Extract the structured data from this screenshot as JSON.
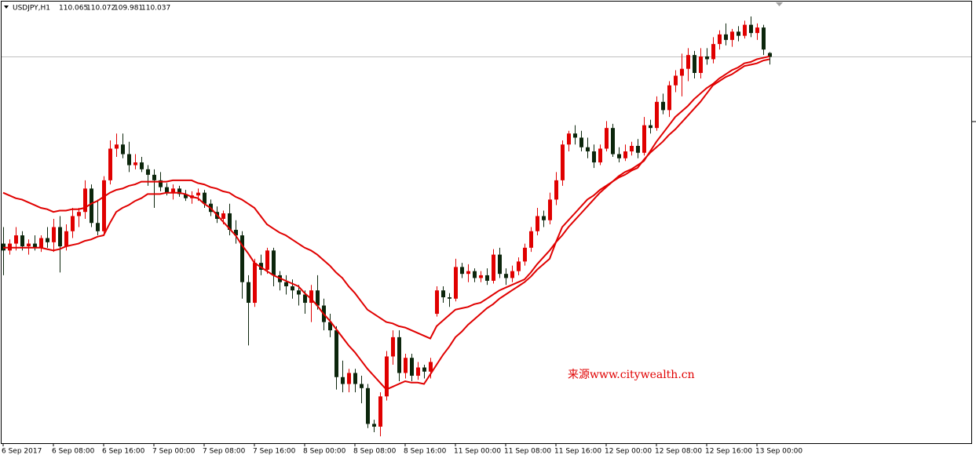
{
  "chart_data": {
    "type": "candlestick",
    "title": "USDJPY,H1",
    "annotation": "来源www.citywealth.cn",
    "ylim": [
      107.23,
      110.45
    ],
    "bull_color": "#e00000",
    "bear_color": "#0c260c",
    "xticks": [
      {
        "value": 0,
        "label": "6 Sep 2017"
      },
      {
        "value": 8,
        "label": "6 Sep 08:00"
      },
      {
        "value": 16,
        "label": "6 Sep 16:00"
      },
      {
        "value": 24,
        "label": "7 Sep 00:00"
      },
      {
        "value": 32,
        "label": "7 Sep 08:00"
      },
      {
        "value": 40,
        "label": "7 Sep 16:00"
      },
      {
        "value": 48,
        "label": "8 Sep 00:00"
      },
      {
        "value": 56,
        "label": "8 Sep 08:00"
      },
      {
        "value": 64,
        "label": "8 Sep 16:00"
      },
      {
        "value": 72,
        "label": "11 Sep 00:00"
      },
      {
        "value": 80,
        "label": "11 Sep 08:00"
      },
      {
        "value": 88,
        "label": "11 Sep 16:00"
      },
      {
        "value": 96,
        "label": "12 Sep 00:00"
      },
      {
        "value": 104,
        "label": "12 Sep 08:00"
      },
      {
        "value": 112,
        "label": "12 Sep 16:00"
      },
      {
        "value": 120,
        "label": "13 Sep 00:00"
      }
    ],
    "ohlc": [
      [
        108.68,
        108.8,
        108.45,
        108.63
      ],
      [
        108.63,
        108.71,
        108.6,
        108.68
      ],
      [
        108.68,
        108.8,
        108.63,
        108.74
      ],
      [
        108.74,
        108.77,
        108.63,
        108.66
      ],
      [
        108.66,
        108.71,
        108.6,
        108.68
      ],
      [
        108.68,
        108.74,
        108.63,
        108.65
      ],
      [
        108.65,
        108.74,
        108.62,
        108.72
      ],
      [
        108.72,
        108.8,
        108.65,
        108.69
      ],
      [
        108.69,
        108.86,
        108.62,
        108.8
      ],
      [
        108.8,
        108.88,
        108.47,
        108.66
      ],
      [
        108.66,
        108.82,
        108.63,
        108.77
      ],
      [
        108.77,
        108.94,
        108.72,
        108.88
      ],
      [
        108.88,
        108.94,
        108.8,
        108.91
      ],
      [
        108.91,
        109.14,
        108.86,
        109.08
      ],
      [
        109.08,
        109.11,
        108.8,
        108.83
      ],
      [
        108.83,
        109.0,
        108.74,
        108.77
      ],
      [
        108.77,
        109.17,
        108.74,
        109.14
      ],
      [
        109.14,
        109.43,
        109.11,
        109.37
      ],
      [
        109.37,
        109.48,
        109.31,
        109.4
      ],
      [
        109.4,
        109.48,
        109.3,
        109.33
      ],
      [
        109.33,
        109.42,
        109.2,
        109.25
      ],
      [
        109.25,
        109.33,
        109.22,
        109.27
      ],
      [
        109.27,
        109.31,
        109.2,
        109.22
      ],
      [
        109.22,
        109.25,
        109.1,
        109.18
      ],
      [
        109.18,
        109.22,
        108.94,
        109.14
      ],
      [
        109.14,
        109.2,
        109.06,
        109.09
      ],
      [
        109.09,
        109.12,
        109.03,
        109.05
      ],
      [
        109.05,
        109.11,
        109.0,
        109.08
      ],
      [
        109.08,
        109.1,
        109.02,
        109.04
      ],
      [
        109.04,
        109.07,
        108.99,
        109.01
      ],
      [
        109.01,
        109.06,
        108.97,
        109.03
      ],
      [
        109.03,
        109.08,
        108.99,
        109.05
      ],
      [
        109.05,
        109.07,
        108.94,
        108.97
      ],
      [
        108.97,
        109.0,
        108.88,
        108.91
      ],
      [
        108.91,
        108.95,
        108.83,
        108.86
      ],
      [
        108.86,
        108.92,
        108.82,
        108.9
      ],
      [
        108.9,
        108.97,
        108.74,
        108.78
      ],
      [
        108.78,
        108.85,
        108.68,
        108.74
      ],
      [
        108.74,
        108.77,
        108.28,
        108.4
      ],
      [
        108.4,
        108.45,
        107.94,
        108.25
      ],
      [
        108.25,
        108.57,
        108.22,
        108.54
      ],
      [
        108.54,
        108.6,
        108.45,
        108.49
      ],
      [
        108.49,
        108.65,
        108.46,
        108.63
      ],
      [
        108.63,
        108.65,
        108.37,
        108.45
      ],
      [
        108.45,
        108.48,
        108.34,
        108.4
      ],
      [
        108.4,
        108.45,
        108.31,
        108.37
      ],
      [
        108.37,
        108.42,
        108.28,
        108.34
      ],
      [
        108.34,
        108.38,
        108.23,
        108.31
      ],
      [
        108.31,
        108.34,
        108.17,
        108.25
      ],
      [
        108.25,
        108.38,
        108.11,
        108.34
      ],
      [
        108.34,
        108.45,
        108.2,
        108.23
      ],
      [
        108.23,
        108.28,
        108.05,
        108.11
      ],
      [
        108.11,
        108.17,
        108.0,
        108.05
      ],
      [
        108.05,
        108.08,
        107.62,
        107.71
      ],
      [
        107.71,
        107.83,
        107.6,
        107.66
      ],
      [
        107.66,
        107.77,
        107.6,
        107.74
      ],
      [
        107.74,
        107.77,
        107.6,
        107.66
      ],
      [
        107.66,
        107.72,
        107.52,
        107.63
      ],
      [
        107.63,
        107.66,
        107.34,
        107.37
      ],
      [
        107.37,
        107.4,
        107.31,
        107.35
      ],
      [
        107.35,
        107.6,
        107.28,
        107.57
      ],
      [
        107.57,
        107.9,
        107.54,
        107.86
      ],
      [
        107.86,
        108.05,
        107.8,
        108.0
      ],
      [
        108.0,
        108.05,
        107.68,
        107.74
      ],
      [
        107.74,
        107.88,
        107.7,
        107.85
      ],
      [
        107.85,
        107.88,
        107.68,
        107.72
      ],
      [
        107.72,
        107.82,
        107.69,
        107.78
      ],
      [
        107.78,
        107.8,
        107.7,
        107.75
      ],
      [
        107.75,
        107.85,
        107.7,
        107.82
      ],
      [
        108.17,
        108.37,
        108.15,
        108.34
      ],
      [
        108.34,
        108.37,
        108.25,
        108.29
      ],
      [
        108.29,
        108.32,
        108.22,
        108.28
      ],
      [
        108.28,
        108.57,
        108.26,
        108.51
      ],
      [
        108.51,
        108.54,
        108.43,
        108.46
      ],
      [
        108.46,
        108.53,
        108.4,
        108.48
      ],
      [
        108.48,
        108.5,
        108.4,
        108.43
      ],
      [
        108.43,
        108.48,
        108.4,
        108.45
      ],
      [
        108.45,
        108.5,
        108.38,
        108.41
      ],
      [
        108.41,
        108.64,
        108.39,
        108.6
      ],
      [
        108.6,
        108.65,
        108.43,
        108.46
      ],
      [
        108.46,
        108.5,
        108.38,
        108.43
      ],
      [
        108.43,
        108.52,
        108.4,
        108.48
      ],
      [
        108.48,
        108.58,
        108.45,
        108.55
      ],
      [
        108.55,
        108.68,
        108.52,
        108.65
      ],
      [
        108.65,
        108.8,
        108.62,
        108.77
      ],
      [
        108.77,
        108.94,
        108.74,
        108.88
      ],
      [
        108.88,
        108.92,
        108.8,
        108.85
      ],
      [
        108.85,
        109.05,
        108.82,
        109.0
      ],
      [
        109.0,
        109.2,
        108.96,
        109.14
      ],
      [
        109.14,
        109.43,
        109.1,
        109.4
      ],
      [
        109.4,
        109.5,
        109.35,
        109.48
      ],
      [
        109.48,
        109.54,
        109.4,
        109.45
      ],
      [
        109.45,
        109.5,
        109.35,
        109.38
      ],
      [
        109.38,
        109.45,
        109.3,
        109.35
      ],
      [
        109.35,
        109.4,
        109.23,
        109.27
      ],
      [
        109.27,
        109.4,
        109.25,
        109.37
      ],
      [
        109.37,
        109.57,
        109.35,
        109.52
      ],
      [
        109.52,
        109.55,
        109.31,
        109.33
      ],
      [
        109.33,
        109.38,
        109.27,
        109.3
      ],
      [
        109.3,
        109.4,
        109.28,
        109.35
      ],
      [
        109.35,
        109.42,
        109.32,
        109.39
      ],
      [
        109.39,
        109.44,
        109.3,
        109.34
      ],
      [
        109.34,
        109.6,
        109.32,
        109.54
      ],
      [
        109.54,
        109.58,
        109.48,
        109.52
      ],
      [
        109.52,
        109.75,
        109.5,
        109.71
      ],
      [
        109.71,
        109.77,
        109.62,
        109.65
      ],
      [
        109.65,
        109.86,
        109.6,
        109.83
      ],
      [
        109.83,
        109.94,
        109.78,
        109.9
      ],
      [
        109.9,
        110.06,
        109.75,
        109.95
      ],
      [
        109.95,
        110.1,
        109.86,
        110.05
      ],
      [
        110.05,
        110.08,
        109.88,
        109.92
      ],
      [
        109.92,
        110.1,
        109.88,
        110.04
      ],
      [
        110.04,
        110.1,
        109.98,
        110.02
      ],
      [
        110.02,
        110.18,
        109.99,
        110.13
      ],
      [
        110.13,
        110.23,
        110.09,
        110.2
      ],
      [
        110.2,
        110.28,
        110.12,
        110.16
      ],
      [
        110.16,
        110.24,
        110.11,
        110.22
      ],
      [
        110.22,
        110.26,
        110.15,
        110.19
      ],
      [
        110.19,
        110.3,
        110.17,
        110.27
      ],
      [
        110.27,
        110.33,
        110.18,
        110.21
      ],
      [
        110.21,
        110.28,
        110.16,
        110.25
      ],
      [
        110.25,
        110.27,
        110.05,
        110.09
      ],
      [
        110.065,
        110.072,
        109.981,
        110.037
      ]
    ],
    "lines": [
      {
        "color": "#e00000",
        "values": [
          109.05,
          109.03,
          109.01,
          109.0,
          108.98,
          108.96,
          108.94,
          108.93,
          108.91,
          108.92,
          108.92,
          108.93,
          108.93,
          108.94,
          108.97,
          108.99,
          109.02,
          109.05,
          109.07,
          109.08,
          109.1,
          109.11,
          109.13,
          109.13,
          109.13,
          109.13,
          109.13,
          109.14,
          109.14,
          109.14,
          109.14,
          109.12,
          109.11,
          109.09,
          109.08,
          109.06,
          109.05,
          109.02,
          109.0,
          108.97,
          108.94,
          108.88,
          108.82,
          108.79,
          108.76,
          108.74,
          108.71,
          108.68,
          108.65,
          108.63,
          108.6,
          108.56,
          108.52,
          108.47,
          108.43,
          108.37,
          108.32,
          108.26,
          108.2,
          108.17,
          108.14,
          108.11,
          108.1,
          108.08,
          108.07,
          108.05,
          108.03,
          108.01,
          107.99,
          108.08,
          108.12,
          108.16,
          108.2,
          108.21,
          108.22,
          108.24,
          108.25,
          108.28,
          108.31,
          108.34,
          108.36,
          108.38,
          108.4,
          108.42,
          108.47,
          108.53,
          108.58,
          108.63,
          108.69,
          108.74,
          108.8,
          108.85,
          108.9,
          108.95,
          109.0,
          109.05,
          109.09,
          109.13,
          109.17,
          109.2,
          109.22,
          109.25,
          109.28,
          109.35,
          109.42,
          109.48,
          109.54,
          109.6,
          109.64,
          109.68,
          109.73,
          109.77,
          109.81,
          109.84,
          109.88,
          109.91,
          109.94,
          109.96,
          109.99,
          110.0,
          110.02,
          110.03,
          110.04
        ]
      },
      {
        "color": "#e00000",
        "values": [
          108.65,
          108.65,
          108.65,
          108.65,
          108.65,
          108.65,
          108.65,
          108.64,
          108.63,
          108.64,
          108.66,
          108.67,
          108.68,
          108.7,
          108.71,
          108.73,
          108.74,
          108.83,
          108.91,
          108.94,
          108.96,
          108.99,
          109.01,
          109.04,
          109.04,
          109.04,
          109.05,
          109.05,
          109.05,
          109.04,
          109.02,
          109.01,
          108.97,
          108.94,
          108.89,
          108.84,
          108.79,
          108.74,
          108.67,
          108.61,
          108.54,
          108.51,
          108.48,
          108.45,
          108.43,
          108.41,
          108.39,
          108.37,
          108.32,
          108.28,
          108.23,
          108.17,
          108.12,
          108.06,
          108.0,
          107.94,
          107.89,
          107.83,
          107.77,
          107.72,
          107.67,
          107.62,
          107.64,
          107.66,
          107.68,
          107.67,
          107.67,
          107.66,
          107.73,
          107.8,
          107.87,
          107.93,
          108.0,
          108.04,
          108.09,
          108.13,
          108.17,
          108.21,
          108.24,
          108.28,
          108.31,
          108.34,
          108.37,
          108.4,
          108.44,
          108.49,
          108.53,
          108.57,
          108.69,
          108.8,
          108.85,
          108.9,
          108.95,
          109.0,
          109.03,
          109.07,
          109.1,
          109.13,
          109.16,
          109.18,
          109.21,
          109.23,
          109.29,
          109.34,
          109.38,
          109.42,
          109.47,
          109.51,
          109.56,
          109.61,
          109.66,
          109.71,
          109.77,
          109.83,
          109.86,
          109.89,
          109.91,
          109.94,
          109.97,
          109.98,
          109.99,
          110.01,
          110.02
        ]
      }
    ]
  }
}
